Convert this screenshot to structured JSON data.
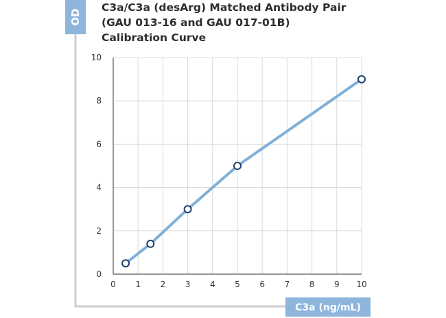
{
  "chart_data": {
    "type": "line",
    "title_lines": [
      "C3a/C3a (desArg) Matched Antibody Pair",
      "(GAU 013-16 and GAU 017-01B)",
      "Calibration Curve"
    ],
    "ylabel": "OD",
    "xlabel": "C3a (ng/mL)",
    "xlim": [
      0,
      10
    ],
    "ylim": [
      0,
      10
    ],
    "x_ticks": [
      0,
      1,
      2,
      3,
      4,
      5,
      6,
      7,
      8,
      9,
      10
    ],
    "y_ticks": [
      0,
      2,
      4,
      6,
      8,
      10
    ],
    "grid": true,
    "series": [
      {
        "x": [
          0.5,
          1.5,
          3,
          5,
          10
        ],
        "y": [
          0.5,
          1.4,
          3.0,
          5.0,
          9.0
        ]
      }
    ],
    "colors": {
      "line": "#7fb0d8",
      "marker_edge": "#1d3f6e",
      "marker_fill": "#ffffff",
      "label_box": "#8eb6dc",
      "grid": "#d8d8d8",
      "frame": "#cfcfcf",
      "axis": "#555555"
    }
  }
}
